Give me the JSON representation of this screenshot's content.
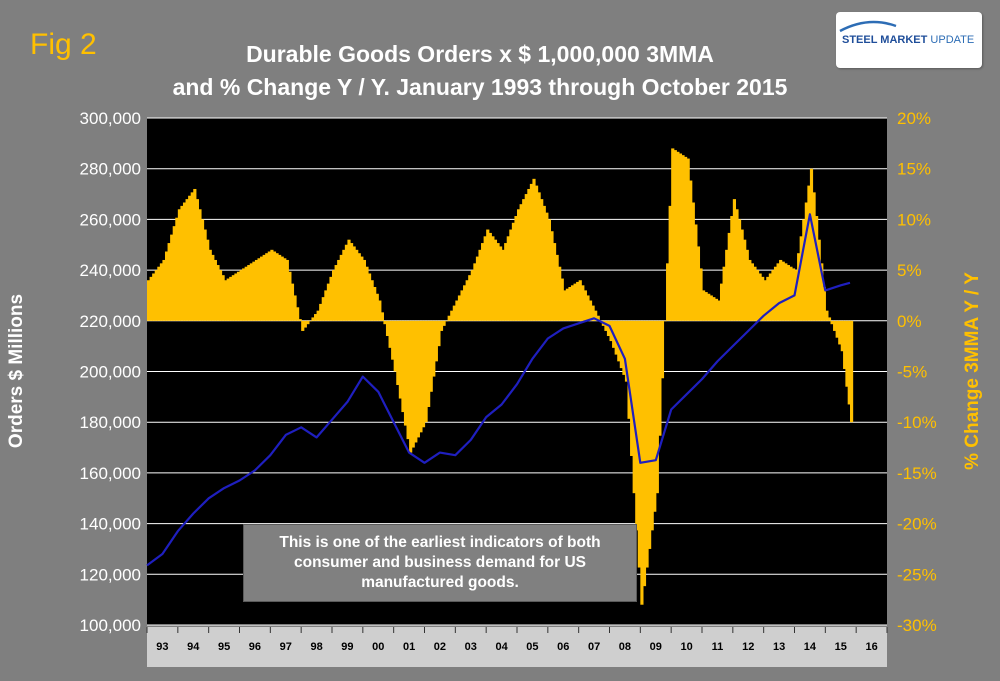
{
  "figure": {
    "label": "Fig 2",
    "title_line1": "Durable Goods Orders x $ 1,000,000 3MMA",
    "title_line2": "and % Change Y / Y. January 1993 through October 2015",
    "logo": {
      "strong": "STEEL MARKET",
      "light": " UPDATE"
    },
    "note": "This is one of the earliest indicators of both consumer and business demand for US manufactured goods."
  },
  "chart_data": {
    "type": "bar+line",
    "title": "Durable Goods Orders x $ 1,000,000 3MMA and % Change Y / Y. January 1993 through October 2015",
    "ylabel": "Orders $ Millions",
    "y2label": "% Change 3MMA Y / Y",
    "ylim": [
      100000,
      300000
    ],
    "y2lim": [
      -30,
      20
    ],
    "grid": true,
    "y_ticks": [
      "100,000",
      "120,000",
      "140,000",
      "160,000",
      "180,000",
      "200,000",
      "220,000",
      "240,000",
      "260,000",
      "280,000",
      "300,000"
    ],
    "y2_ticks": [
      "-30%",
      "-25%",
      "-20%",
      "-15%",
      "-10%",
      "-5%",
      "0%",
      "5%",
      "10%",
      "15%",
      "20%"
    ],
    "x_categories": [
      "93",
      "94",
      "95",
      "96",
      "97",
      "98",
      "99",
      "00",
      "01",
      "02",
      "03",
      "04",
      "05",
      "06",
      "07",
      "08",
      "09",
      "10",
      "11",
      "12",
      "13",
      "14",
      "15",
      "16"
    ],
    "colors": {
      "bars": "#ffc000",
      "line": "#1f1fbf",
      "plot_bg": "#000000",
      "grid": "#ffffff"
    },
    "series": [
      {
        "name": "% Change 3MMA Y / Y",
        "kind": "bar",
        "axis": "right",
        "x_year": [
          1993.0,
          1993.5,
          1994.0,
          1994.5,
          1995.0,
          1995.5,
          1996.0,
          1996.5,
          1997.0,
          1997.5,
          1998.0,
          1998.5,
          1999.0,
          1999.5,
          2000.0,
          2000.5,
          2001.0,
          2001.5,
          2002.0,
          2002.5,
          2003.0,
          2003.5,
          2004.0,
          2004.5,
          2005.0,
          2005.5,
          2006.0,
          2006.5,
          2007.0,
          2007.5,
          2008.0,
          2008.5,
          2009.0,
          2009.5,
          2010.0,
          2010.5,
          2011.0,
          2011.5,
          2012.0,
          2012.5,
          2013.0,
          2013.5,
          2014.0,
          2014.5,
          2015.0,
          2015.5,
          2015.8
        ],
        "values": [
          4,
          6,
          11,
          13,
          7,
          4,
          5,
          6,
          7,
          6,
          -1,
          1,
          5,
          8,
          6,
          2,
          -5,
          -13,
          -10,
          -1,
          2,
          5,
          9,
          7,
          11,
          14,
          10,
          3,
          4,
          1,
          -2,
          -6,
          -28,
          -17,
          17,
          16,
          3,
          2,
          12,
          6,
          4,
          6,
          5,
          15,
          1,
          -3,
          -10
        ]
      },
      {
        "name": "Durable Goods Orders 3MMA",
        "kind": "line",
        "axis": "left",
        "x_year": [
          1993.0,
          1993.5,
          1994.0,
          1994.5,
          1995.0,
          1995.5,
          1996.0,
          1996.5,
          1997.0,
          1997.5,
          1998.0,
          1998.5,
          1999.0,
          1999.5,
          2000.0,
          2000.5,
          2001.0,
          2001.5,
          2002.0,
          2002.5,
          2003.0,
          2003.5,
          2004.0,
          2004.5,
          2005.0,
          2005.5,
          2006.0,
          2006.5,
          2007.0,
          2007.5,
          2008.0,
          2008.5,
          2009.0,
          2009.5,
          2010.0,
          2010.5,
          2011.0,
          2011.5,
          2012.0,
          2012.5,
          2013.0,
          2013.5,
          2014.0,
          2014.5,
          2015.0,
          2015.5,
          2015.8
        ],
        "values": [
          123500,
          128000,
          137000,
          144000,
          150000,
          154000,
          157000,
          161000,
          167000,
          175000,
          178000,
          174000,
          181000,
          188000,
          198000,
          192000,
          180000,
          168000,
          164000,
          168000,
          167000,
          173000,
          182000,
          187000,
          195000,
          205000,
          213000,
          217000,
          219000,
          221000,
          218000,
          205000,
          164000,
          165000,
          185000,
          191000,
          197000,
          204000,
          210000,
          216000,
          222000,
          227000,
          230000,
          262000,
          232000,
          234000,
          235000
        ]
      }
    ]
  }
}
